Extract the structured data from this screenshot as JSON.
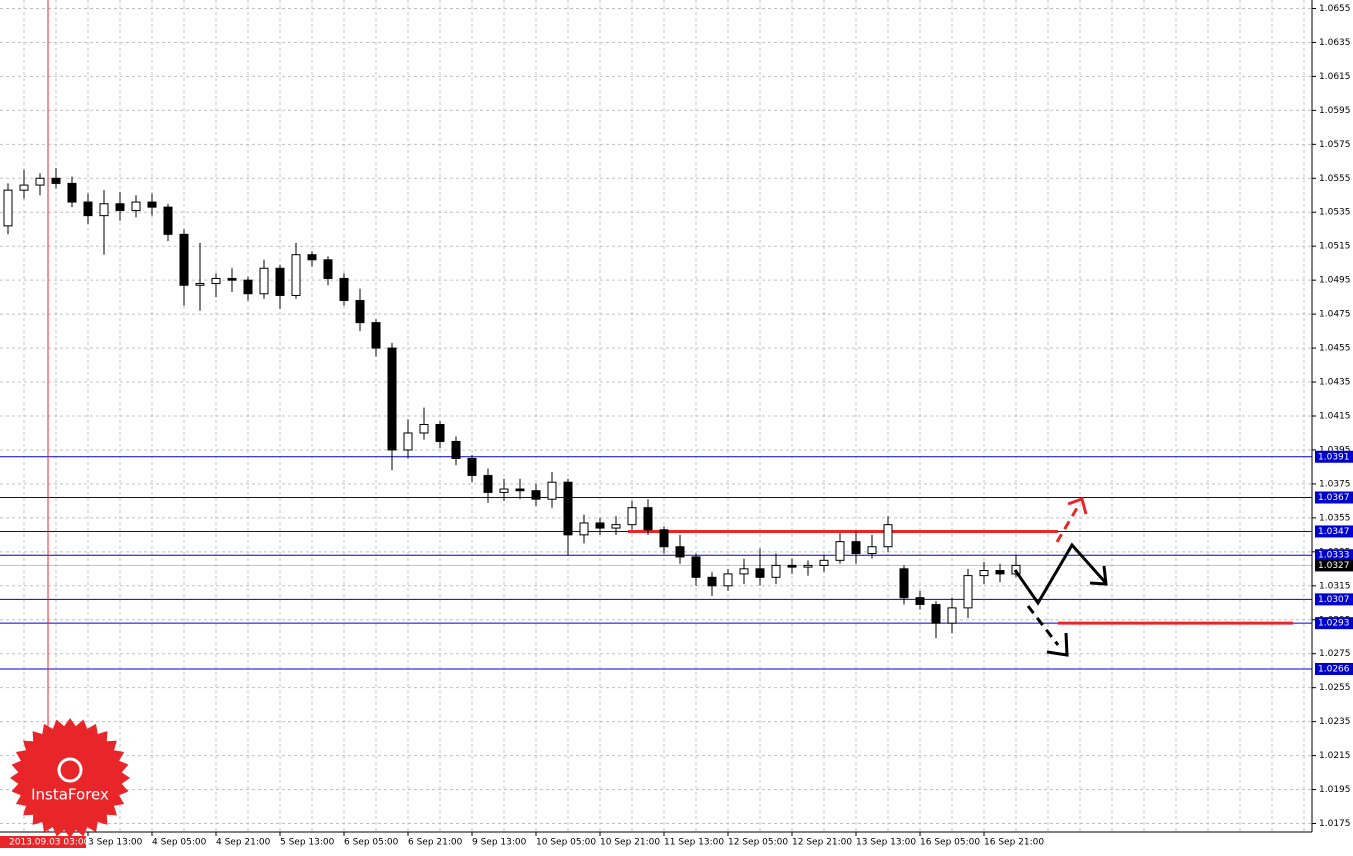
{
  "chart_data": {
    "type": "candlestick",
    "ylim": [
      1.017,
      1.066
    ],
    "yticks": [
      1.0175,
      1.0195,
      1.0215,
      1.0235,
      1.0255,
      1.0275,
      1.0295,
      1.0315,
      1.0335,
      1.0355,
      1.0375,
      1.0395,
      1.0415,
      1.0435,
      1.0455,
      1.0475,
      1.0495,
      1.0515,
      1.0535,
      1.0555,
      1.0575,
      1.0595,
      1.0615,
      1.0635,
      1.0655
    ],
    "grid": true,
    "x_labels": [
      "3 Sep 13:00",
      "4 Sep 05:00",
      "4 Sep 21:00",
      "5 Sep 13:00",
      "6 Sep 05:00",
      "6 Sep 21:00",
      "9 Sep 13:00",
      "10 Sep 05:00",
      "10 Sep 21:00",
      "11 Sep 13:00",
      "12 Sep 05:00",
      "12 Sep 21:00",
      "13 Sep 13:00",
      "16 Sep 05:00",
      "16 Sep 21:00"
    ],
    "cursor_label": "2013.09.03 03:00",
    "candles": {
      "open": [
        1.0527,
        1.0548,
        1.0551,
        1.0555,
        1.0552,
        1.0541,
        1.0533,
        1.054,
        1.0536,
        1.0541,
        1.0538,
        1.0522,
        1.0492,
        1.0493,
        1.0496,
        1.0495,
        1.0487,
        1.0502,
        1.0486,
        1.051,
        1.0507,
        1.0496,
        1.0483,
        1.047,
        1.0455,
        1.0395,
        1.0405,
        1.041,
        1.04,
        1.039,
        1.038,
        1.037,
        1.0372,
        1.0371,
        1.0366,
        1.0376,
        1.0345,
        1.0352,
        1.0349,
        1.0351,
        1.0361,
        1.0348,
        1.0338,
        1.0332,
        1.032,
        1.0315,
        1.0322,
        1.0325,
        1.032,
        1.0327,
        1.0326,
        1.0327,
        1.033,
        1.0341,
        1.0334,
        1.0338,
        1.0325,
        1.0308,
        1.0304,
        1.0293,
        1.0302,
        1.0321,
        1.0324,
        1.0322
      ],
      "high": [
        1.0552,
        1.056,
        1.0558,
        1.0561,
        1.0556,
        1.0546,
        1.0548,
        1.0547,
        1.0545,
        1.0546,
        1.054,
        1.0525,
        1.0517,
        1.0499,
        1.0502,
        1.0497,
        1.0507,
        1.0504,
        1.0517,
        1.0512,
        1.0509,
        1.0499,
        1.049,
        1.0472,
        1.0458,
        1.0413,
        1.042,
        1.0412,
        1.0403,
        1.0392,
        1.0384,
        1.0378,
        1.0378,
        1.0375,
        1.0382,
        1.0378,
        1.0357,
        1.0355,
        1.0356,
        1.0365,
        1.0366,
        1.035,
        1.0345,
        1.0334,
        1.0323,
        1.0325,
        1.0331,
        1.0337,
        1.0334,
        1.0331,
        1.033,
        1.0333,
        1.0346,
        1.0347,
        1.0345,
        1.0356,
        1.0327,
        1.0312,
        1.0306,
        1.0308,
        1.0325,
        1.0329,
        1.0328,
        1.0333
      ],
      "low": [
        1.0522,
        1.0543,
        1.0545,
        1.0549,
        1.0538,
        1.0528,
        1.051,
        1.053,
        1.0532,
        1.0533,
        1.0518,
        1.048,
        1.0477,
        1.0485,
        1.0488,
        1.0483,
        1.0484,
        1.0478,
        1.0484,
        1.0503,
        1.0492,
        1.048,
        1.0465,
        1.045,
        1.0383,
        1.039,
        1.0401,
        1.0396,
        1.0386,
        1.0376,
        1.0364,
        1.0365,
        1.0366,
        1.0362,
        1.0361,
        1.0333,
        1.034,
        1.0345,
        1.0345,
        1.0348,
        1.0345,
        1.0334,
        1.0328,
        1.0315,
        1.0309,
        1.0312,
        1.0316,
        1.0315,
        1.0316,
        1.0322,
        1.0321,
        1.0323,
        1.0328,
        1.0328,
        1.0331,
        1.0335,
        1.0304,
        1.0301,
        1.0284,
        1.0287,
        1.0296,
        1.0316,
        1.0317,
        1.032
      ],
      "close": [
        1.0548,
        1.0551,
        1.0555,
        1.0552,
        1.0541,
        1.0533,
        1.054,
        1.0536,
        1.0541,
        1.0538,
        1.0522,
        1.0492,
        1.0493,
        1.0496,
        1.0495,
        1.0487,
        1.0502,
        1.0486,
        1.051,
        1.0507,
        1.0496,
        1.0483,
        1.047,
        1.0455,
        1.0395,
        1.0405,
        1.041,
        1.04,
        1.039,
        1.038,
        1.037,
        1.0372,
        1.0371,
        1.0366,
        1.0376,
        1.0345,
        1.0352,
        1.0349,
        1.0351,
        1.0361,
        1.0348,
        1.0338,
        1.0332,
        1.032,
        1.0315,
        1.0322,
        1.0325,
        1.032,
        1.0327,
        1.0326,
        1.0327,
        1.033,
        1.0341,
        1.0334,
        1.0338,
        1.0351,
        1.0308,
        1.0304,
        1.0293,
        1.0302,
        1.0321,
        1.0324,
        1.0322,
        1.0327
      ]
    },
    "levels": [
      1.0391,
      1.0367,
      1.0347,
      1.0333,
      1.0307,
      1.0293,
      1.0266
    ],
    "level_color": "#0000cc",
    "current_price": 1.0327,
    "red_lines": [
      1.0347,
      1.0293
    ],
    "red_color": "#e8262a",
    "logo": "InstaForex"
  }
}
